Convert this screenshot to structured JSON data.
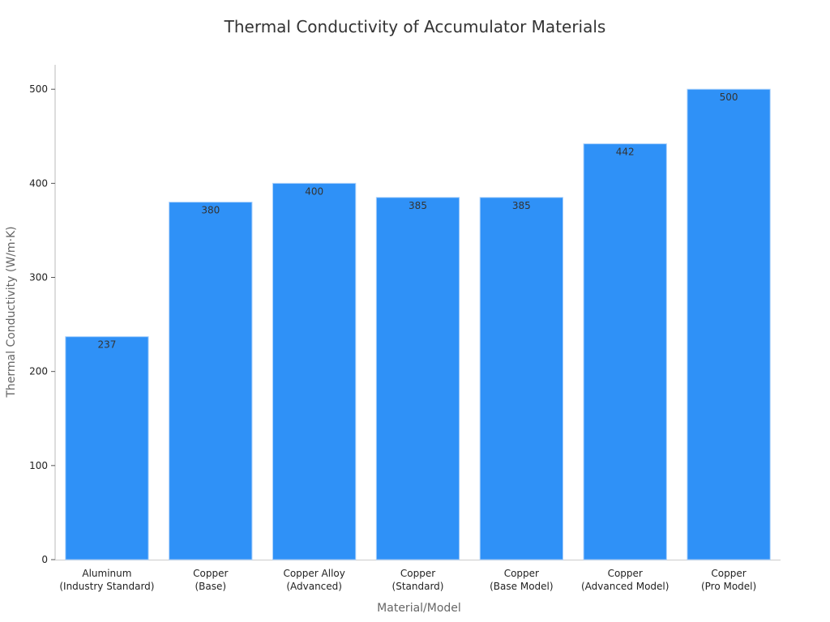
{
  "chart_data": {
    "type": "bar",
    "title": "Thermal Conductivity of Accumulator Materials",
    "x_label": "Material/Model",
    "y_label": "Thermal Conductivity (W/m·K)",
    "categories": [
      "Aluminum\n(Industry Standard)",
      "Copper\n(Base)",
      "Copper Alloy\n(Advanced)",
      "Copper\n(Standard)",
      "Copper\n(Base Model)",
      "Copper\n(Advanced Model)",
      "Copper\n(Pro Model)"
    ],
    "values": [
      237,
      380,
      400,
      385,
      385,
      442,
      500
    ],
    "color": "#2f91f7",
    "ylim": [
      0,
      526
    ],
    "yticks": [
      0,
      100,
      200,
      300,
      400,
      500
    ],
    "grid": false
  }
}
